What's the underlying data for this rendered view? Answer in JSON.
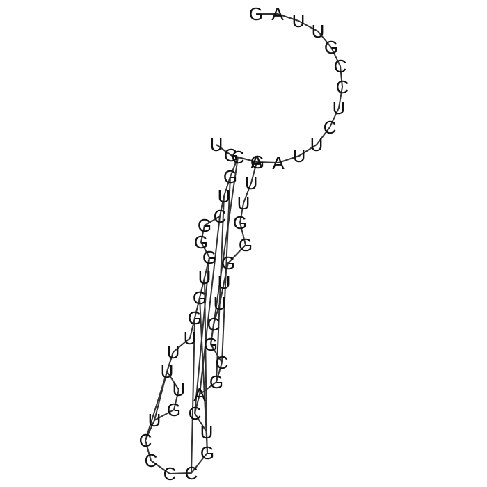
{
  "sequence": "GAUUGCCUCUUAGCGUCGGGUGGUUUUGUCCCCGUCAGCGCUUGGGUUAGU",
  "base_pairs": [
    [
      13,
      39
    ],
    [
      14,
      38
    ],
    [
      15,
      37
    ],
    [
      16,
      36
    ],
    [
      19,
      35
    ],
    [
      20,
      34
    ],
    [
      21,
      33
    ],
    [
      22,
      32
    ],
    [
      24,
      29
    ],
    [
      25,
      28
    ]
  ],
  "colors": {
    "stroke": "#333333",
    "text": "#111111",
    "background": "#ffffff"
  }
}
